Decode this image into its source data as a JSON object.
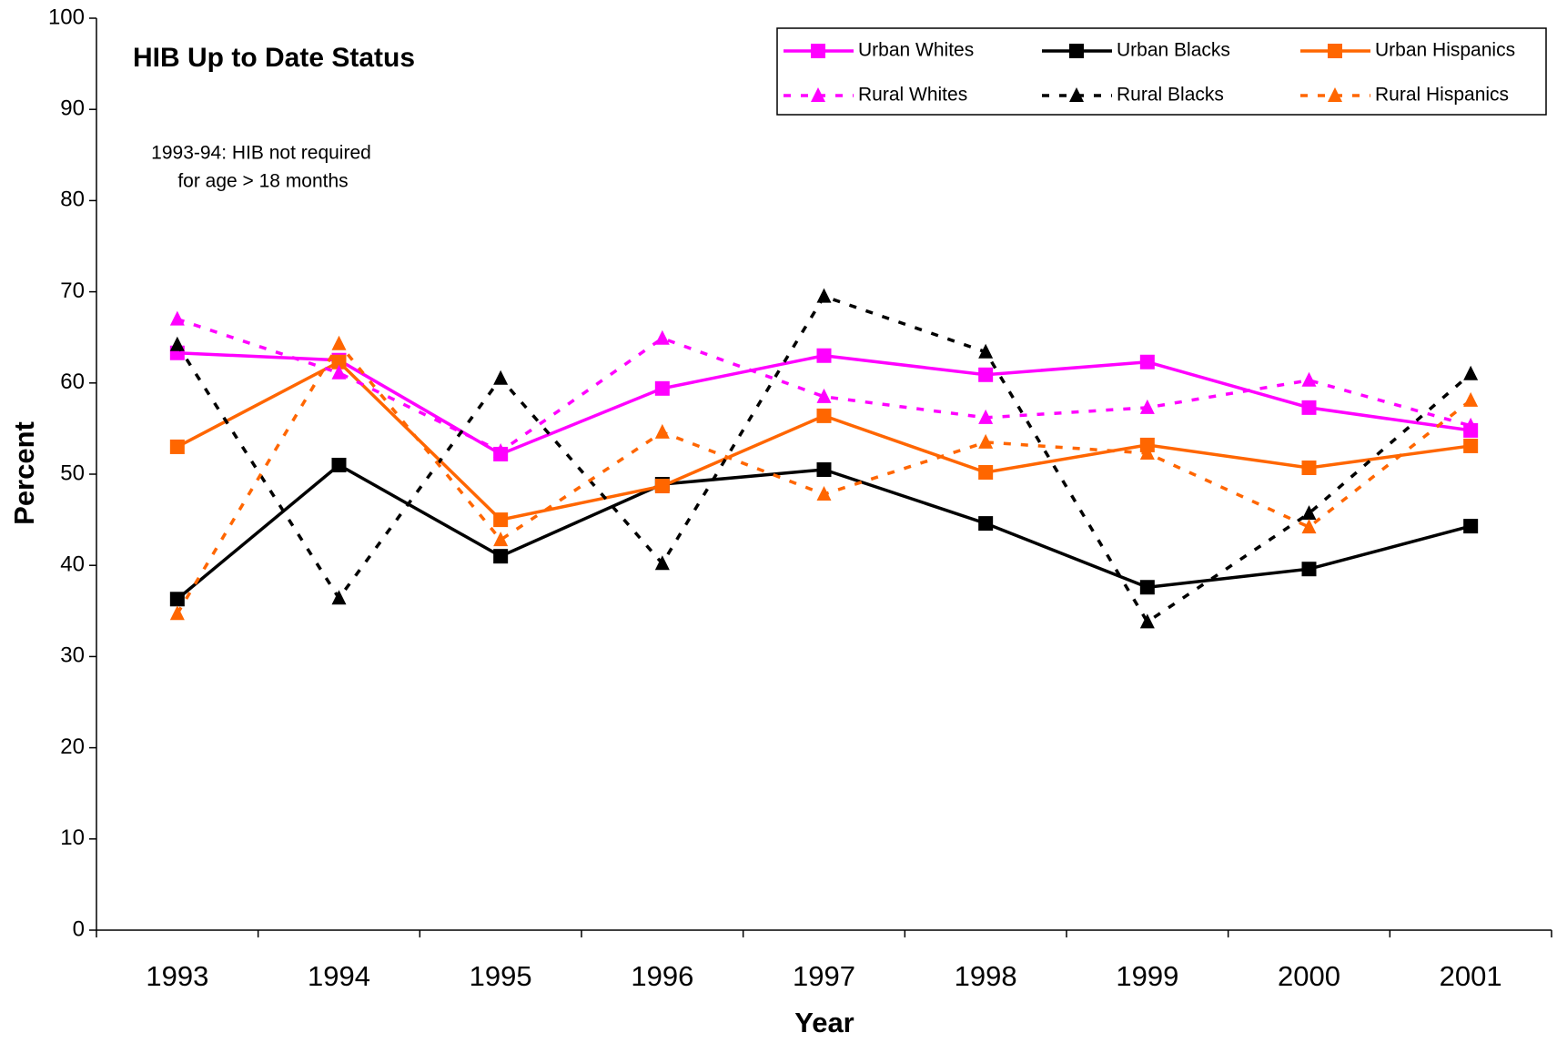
{
  "chart_data": {
    "type": "line",
    "title": "HIB Up to Date Status",
    "annotation": [
      "1993-94: HIB not required",
      "for age > 18 months"
    ],
    "x_label": "Year",
    "y_label": "Percent",
    "categories": [
      "1993",
      "1994",
      "1995",
      "1996",
      "1997",
      "1998",
      "1999",
      "2000",
      "2001"
    ],
    "ylim": [
      0,
      100
    ],
    "yticks": [
      0,
      10,
      20,
      30,
      40,
      50,
      60,
      70,
      80,
      90,
      100
    ],
    "legend": "top-right",
    "series": [
      {
        "name": "Urban Whites",
        "color": "#ff00ff",
        "dash": "solid",
        "marker": "square",
        "values": [
          63.3,
          62.5,
          52.2,
          59.4,
          63.0,
          60.9,
          62.3,
          57.3,
          54.8
        ]
      },
      {
        "name": "Urban Blacks",
        "color": "#000000",
        "dash": "solid",
        "marker": "square",
        "values": [
          36.3,
          51.0,
          41.0,
          48.9,
          50.5,
          44.6,
          37.6,
          39.6,
          44.3
        ]
      },
      {
        "name": "Urban Hispanics",
        "color": "#ff6600",
        "dash": "solid",
        "marker": "square",
        "values": [
          53.0,
          62.3,
          45.0,
          48.7,
          56.4,
          50.2,
          53.2,
          50.7,
          53.1
        ]
      },
      {
        "name": "Rural Whites",
        "color": "#ff00ff",
        "dash": "dashed",
        "marker": "triangle",
        "values": [
          67.0,
          61.1,
          52.5,
          64.9,
          58.5,
          56.2,
          57.3,
          60.3,
          55.3
        ]
      },
      {
        "name": "Rural Blacks",
        "color": "#000000",
        "dash": "dashed",
        "marker": "triangle",
        "values": [
          64.2,
          36.4,
          60.5,
          40.2,
          69.5,
          63.4,
          33.8,
          45.7,
          61.0
        ]
      },
      {
        "name": "Rural Hispanics",
        "color": "#ff6600",
        "dash": "dashed",
        "marker": "triangle",
        "values": [
          34.7,
          64.3,
          42.8,
          54.6,
          47.8,
          53.5,
          52.3,
          44.2,
          58.1
        ]
      }
    ]
  }
}
